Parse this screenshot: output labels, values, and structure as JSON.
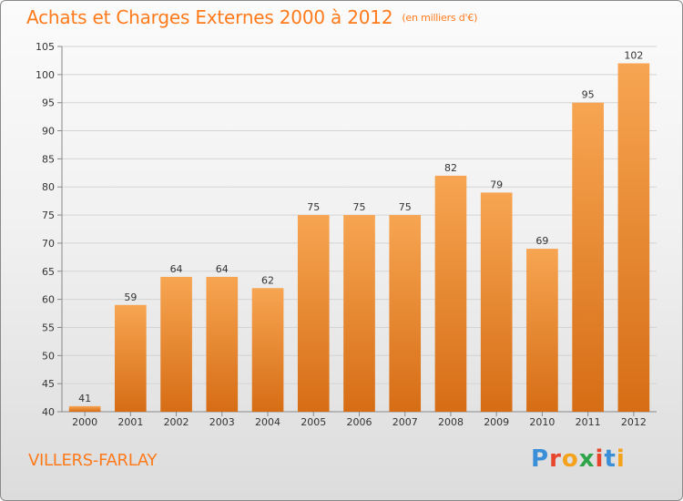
{
  "header": {
    "title": "Achats et Charges Externes 2000 à 2012",
    "unit": "(en milliers d'€)"
  },
  "footer": {
    "commune": "VILLERS-FARLAY",
    "logo_letters": [
      {
        "char": "P",
        "color": "#3a8fd8"
      },
      {
        "char": "r",
        "color": "#e8462c"
      },
      {
        "char": "o",
        "color": "#f4a21c"
      },
      {
        "char": "x",
        "color": "#2fa44a"
      },
      {
        "char": "i",
        "color": "#e8462c"
      },
      {
        "char": "t",
        "color": "#3a8fd8"
      },
      {
        "char": "i",
        "color": "#f4a21c"
      }
    ]
  },
  "colors": {
    "bar_top": "#f7a552",
    "bar_bottom": "#d66d15",
    "grid": "#d4d4d4",
    "title": "#ff7a1a"
  },
  "chart_data": {
    "type": "bar",
    "title": "Achats et Charges Externes 2000 à 2012",
    "subtitle": "(en milliers d'€)",
    "categories": [
      "2000",
      "2001",
      "2002",
      "2003",
      "2004",
      "2005",
      "2006",
      "2007",
      "2008",
      "2009",
      "2010",
      "2011",
      "2012"
    ],
    "values": [
      41,
      59,
      64,
      64,
      62,
      75,
      75,
      75,
      82,
      79,
      69,
      95,
      102
    ],
    "ylim": [
      40,
      105
    ],
    "yticks": [
      40,
      45,
      50,
      55,
      60,
      65,
      70,
      75,
      80,
      85,
      90,
      95,
      100,
      105
    ],
    "grid": true,
    "xlabel": "",
    "ylabel": ""
  }
}
